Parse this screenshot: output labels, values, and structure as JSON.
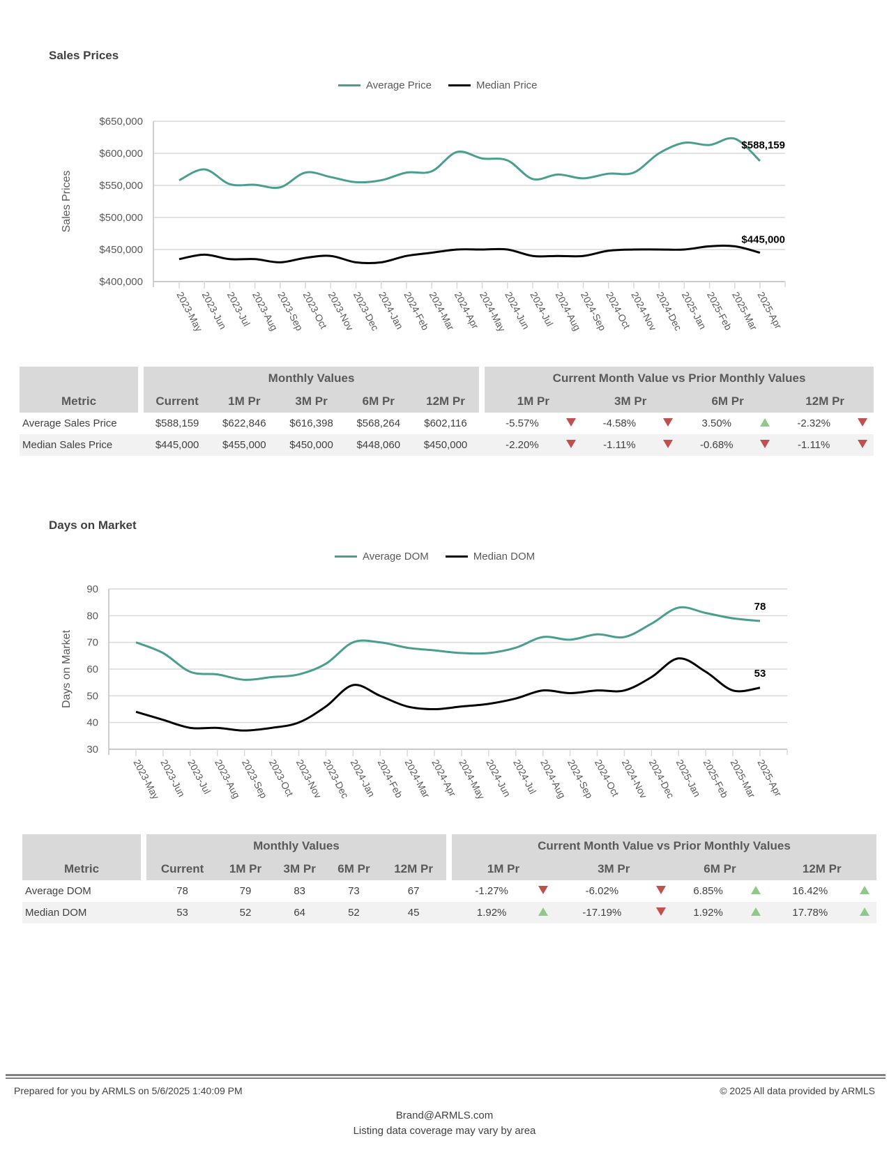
{
  "sales_section": {
    "title": "Sales Prices",
    "legend": [
      {
        "label": "Average Price",
        "color": "#4a9e8e"
      },
      {
        "label": "Median Price",
        "color": "#000000"
      }
    ]
  },
  "dom_section": {
    "title": "Days on Market",
    "legend": [
      {
        "label": "Average DOM",
        "color": "#4a9e8e"
      },
      {
        "label": "Median DOM",
        "color": "#000000"
      }
    ]
  },
  "chart_data": [
    {
      "type": "line",
      "title": "Sales Prices",
      "xlabel": "",
      "ylabel": "Sales Prices",
      "ylim": [
        400000,
        650000
      ],
      "yticks": [
        400000,
        450000,
        500000,
        550000,
        600000,
        650000
      ],
      "ytick_labels": [
        "$400,000",
        "$450,000",
        "$500,000",
        "$550,000",
        "$600,000",
        "$650,000"
      ],
      "grid": true,
      "legend_position": "top-center",
      "x": [
        "2023-May",
        "2023-Jun",
        "2023-Jul",
        "2023-Aug",
        "2023-Sep",
        "2023-Oct",
        "2023-Nov",
        "2023-Dec",
        "2024-Jan",
        "2024-Feb",
        "2024-Mar",
        "2024-Apr",
        "2024-May",
        "2024-Jun",
        "2024-Jul",
        "2024-Aug",
        "2024-Sep",
        "2024-Oct",
        "2024-Nov",
        "2024-Dec",
        "2025-Jan",
        "2025-Feb",
        "2025-Mar",
        "2025-Apr"
      ],
      "series": [
        {
          "name": "Average Price",
          "color": "#4a9e8e",
          "end_label": "$588,159",
          "values": [
            558000,
            575000,
            552000,
            551000,
            547000,
            570000,
            563000,
            555000,
            558000,
            570000,
            572000,
            602116,
            592000,
            589000,
            560000,
            567000,
            561000,
            568264,
            570000,
            600000,
            616398,
            613000,
            622846,
            588159
          ]
        },
        {
          "name": "Median Price",
          "color": "#000000",
          "end_label": "$445,000",
          "values": [
            435000,
            442000,
            435000,
            435000,
            430000,
            437000,
            440000,
            430000,
            430000,
            440000,
            445000,
            450000,
            450000,
            450000,
            440000,
            440000,
            440000,
            448060,
            450000,
            450000,
            450000,
            455000,
            455000,
            445000
          ]
        }
      ]
    },
    {
      "type": "line",
      "title": "Days on Market",
      "xlabel": "",
      "ylabel": "Days on Market",
      "ylim": [
        30,
        90
      ],
      "yticks": [
        30,
        40,
        50,
        60,
        70,
        80,
        90
      ],
      "ytick_labels": [
        "30",
        "40",
        "50",
        "60",
        "70",
        "80",
        "90"
      ],
      "grid": true,
      "legend_position": "top-center",
      "x": [
        "2023-May",
        "2023-Jun",
        "2023-Jul",
        "2023-Aug",
        "2023-Sep",
        "2023-Oct",
        "2023-Nov",
        "2023-Dec",
        "2024-Jan",
        "2024-Feb",
        "2024-Mar",
        "2024-Apr",
        "2024-May",
        "2024-Jun",
        "2024-Jul",
        "2024-Aug",
        "2024-Sep",
        "2024-Oct",
        "2024-Nov",
        "2024-Dec",
        "2025-Jan",
        "2025-Feb",
        "2025-Mar",
        "2025-Apr"
      ],
      "series": [
        {
          "name": "Average DOM",
          "color": "#4a9e8e",
          "end_label": "78",
          "values": [
            70,
            66,
            59,
            58,
            56,
            57,
            58,
            62,
            70,
            70,
            68,
            67,
            66,
            66,
            68,
            72,
            71,
            73,
            72,
            77,
            83,
            81,
            79,
            78
          ]
        },
        {
          "name": "Median DOM",
          "color": "#000000",
          "end_label": "53",
          "values": [
            44,
            41,
            38,
            38,
            37,
            38,
            40,
            46,
            54,
            50,
            46,
            45,
            46,
            47,
            49,
            52,
            51,
            52,
            52,
            57,
            64,
            59,
            52,
            53
          ]
        }
      ]
    }
  ],
  "sales_table": {
    "group_headers": {
      "monthly": "Monthly Values",
      "compare": "Current Month Value vs Prior Monthly Values"
    },
    "columns": {
      "metric": "Metric",
      "monthly": [
        "Current",
        "1M Pr",
        "3M Pr",
        "6M Pr",
        "12M Pr"
      ],
      "compare": [
        "1M Pr",
        "3M Pr",
        "6M Pr",
        "12M Pr"
      ]
    },
    "rows": [
      {
        "metric": "Average Sales Price",
        "values": [
          "$588,159",
          "$622,846",
          "$616,398",
          "$568,264",
          "$602,116"
        ],
        "changes": [
          {
            "pct": "-5.57%",
            "dir": "down"
          },
          {
            "pct": "-4.58%",
            "dir": "down"
          },
          {
            "pct": "3.50%",
            "dir": "up"
          },
          {
            "pct": "-2.32%",
            "dir": "down"
          }
        ]
      },
      {
        "metric": "Median Sales Price",
        "values": [
          "$445,000",
          "$455,000",
          "$450,000",
          "$448,060",
          "$450,000"
        ],
        "changes": [
          {
            "pct": "-2.20%",
            "dir": "down"
          },
          {
            "pct": "-1.11%",
            "dir": "down"
          },
          {
            "pct": "-0.68%",
            "dir": "down"
          },
          {
            "pct": "-1.11%",
            "dir": "down"
          }
        ]
      }
    ]
  },
  "dom_table": {
    "group_headers": {
      "monthly": "Monthly Values",
      "compare": "Current Month Value vs Prior Monthly Values"
    },
    "columns": {
      "metric": "Metric",
      "monthly": [
        "Current",
        "1M Pr",
        "3M Pr",
        "6M Pr",
        "12M Pr"
      ],
      "compare": [
        "1M Pr",
        "3M Pr",
        "6M Pr",
        "12M Pr"
      ]
    },
    "rows": [
      {
        "metric": "Average DOM",
        "values": [
          "78",
          "79",
          "83",
          "73",
          "67"
        ],
        "changes": [
          {
            "pct": "-1.27%",
            "dir": "down"
          },
          {
            "pct": "-6.02%",
            "dir": "down"
          },
          {
            "pct": "6.85%",
            "dir": "up"
          },
          {
            "pct": "16.42%",
            "dir": "up"
          }
        ]
      },
      {
        "metric": "Median DOM",
        "values": [
          "53",
          "52",
          "64",
          "52",
          "45"
        ],
        "changes": [
          {
            "pct": "1.92%",
            "dir": "up"
          },
          {
            "pct": "-17.19%",
            "dir": "down"
          },
          {
            "pct": "1.92%",
            "dir": "up"
          },
          {
            "pct": "17.78%",
            "dir": "up"
          }
        ]
      }
    ]
  },
  "footer": {
    "prepared": "Prepared for you by ARMLS on 5/6/2025 1:40:09 PM",
    "copyright": "© 2025 All data provided by ARMLS",
    "email": "Brand@ARMLS.com",
    "disclaimer": "Listing data coverage may vary by area"
  }
}
